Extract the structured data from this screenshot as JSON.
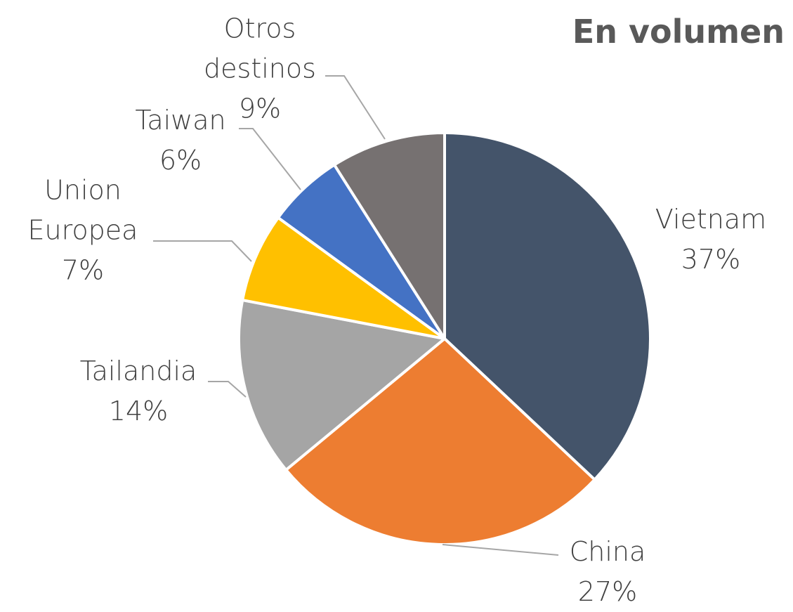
{
  "chart_data": {
    "type": "pie",
    "title": "En volumen",
    "categories": [
      "Vietnam",
      "China",
      "Tailandia",
      "Union Europea",
      "Taiwan",
      "Otros destinos"
    ],
    "values": [
      37,
      27,
      14,
      7,
      6,
      9
    ],
    "value_labels": [
      "37%",
      "27%",
      "14%",
      "7%",
      "6%",
      "9%"
    ],
    "colors": [
      "#44546a",
      "#ed7d31",
      "#a5a5a5",
      "#ffc000",
      "#4472c4",
      "#767171"
    ]
  }
}
